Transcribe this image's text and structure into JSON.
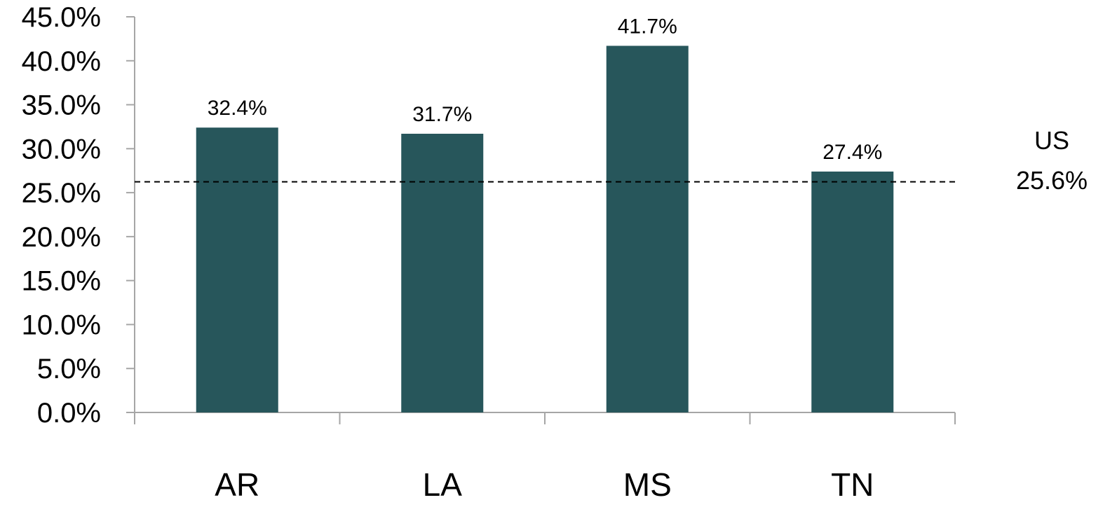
{
  "chart_data": {
    "type": "bar",
    "categories": [
      "AR",
      "LA",
      "MS",
      "TN"
    ],
    "values": [
      32.4,
      31.7,
      41.7,
      27.4
    ],
    "data_labels": [
      "32.4%",
      "31.7%",
      "41.7%",
      "27.4%"
    ],
    "ylim": [
      0,
      45
    ],
    "y_ticks": [
      0,
      5,
      10,
      15,
      20,
      25,
      30,
      35,
      40,
      45
    ],
    "y_tick_labels": [
      "0.0%",
      "5.0%",
      "10.0%",
      "15.0%",
      "20.0%",
      "25.0%",
      "30.0%",
      "35.0%",
      "40.0%",
      "45.0%"
    ],
    "bar_color": "#27565b",
    "axis_color": "#a6a6a6",
    "grid": false,
    "legend": "none",
    "reference_line": {
      "value": 25.6,
      "style": "dashed",
      "color": "#000000",
      "label_name": "US",
      "label_value": "25.6%"
    }
  }
}
